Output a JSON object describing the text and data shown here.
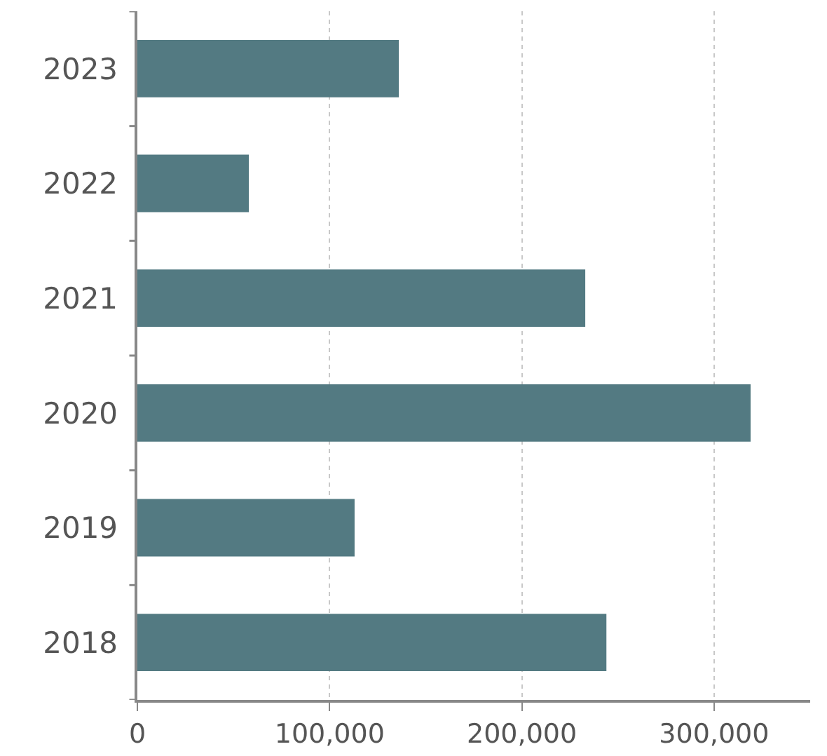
{
  "chart_data": {
    "type": "bar",
    "orientation": "horizontal",
    "categories": [
      "2023",
      "2022",
      "2021",
      "2020",
      "2019",
      "2018"
    ],
    "values": [
      136000,
      58000,
      233000,
      319000,
      113000,
      244000
    ],
    "color": "#537a82",
    "xlim": [
      0,
      350000
    ],
    "xticks": [
      0,
      {
        "value": 100000,
        "label": "100,000"
      },
      {
        "value": 200000,
        "label": "200,000"
      },
      {
        "value": 300000,
        "label": "300,000"
      }
    ],
    "grid": "x",
    "legend": false
  }
}
